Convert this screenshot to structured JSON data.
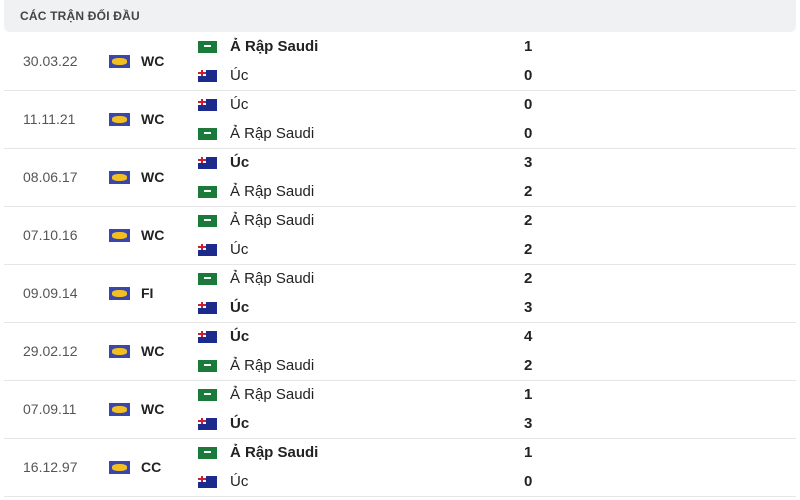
{
  "header": {
    "title": "CÁC TRẬN ĐỐI ĐẦU"
  },
  "matches": [
    {
      "date": "30.03.22",
      "comp": "WC",
      "teams": [
        {
          "name": "Ả Rập Saudi",
          "flag": "saudi-arabia",
          "score": "1",
          "winner": true
        },
        {
          "name": "Úc",
          "flag": "australia",
          "score": "0",
          "winner": false
        }
      ]
    },
    {
      "date": "11.11.21",
      "comp": "WC",
      "teams": [
        {
          "name": "Úc",
          "flag": "australia",
          "score": "0",
          "winner": false
        },
        {
          "name": "Ả Rập Saudi",
          "flag": "saudi-arabia",
          "score": "0",
          "winner": false
        }
      ]
    },
    {
      "date": "08.06.17",
      "comp": "WC",
      "teams": [
        {
          "name": "Úc",
          "flag": "australia",
          "score": "3",
          "winner": true
        },
        {
          "name": "Ả Rập Saudi",
          "flag": "saudi-arabia",
          "score": "2",
          "winner": false
        }
      ]
    },
    {
      "date": "07.10.16",
      "comp": "WC",
      "teams": [
        {
          "name": "Ả Rập Saudi",
          "flag": "saudi-arabia",
          "score": "2",
          "winner": false
        },
        {
          "name": "Úc",
          "flag": "australia",
          "score": "2",
          "winner": false
        }
      ]
    },
    {
      "date": "09.09.14",
      "comp": "FI",
      "teams": [
        {
          "name": "Ả Rập Saudi",
          "flag": "saudi-arabia",
          "score": "2",
          "winner": false
        },
        {
          "name": "Úc",
          "flag": "australia",
          "score": "3",
          "winner": true
        }
      ]
    },
    {
      "date": "29.02.12",
      "comp": "WC",
      "teams": [
        {
          "name": "Úc",
          "flag": "australia",
          "score": "4",
          "winner": true
        },
        {
          "name": "Ả Rập Saudi",
          "flag": "saudi-arabia",
          "score": "2",
          "winner": false
        }
      ]
    },
    {
      "date": "07.09.11",
      "comp": "WC",
      "teams": [
        {
          "name": "Ả Rập Saudi",
          "flag": "saudi-arabia",
          "score": "1",
          "winner": false
        },
        {
          "name": "Úc",
          "flag": "australia",
          "score": "3",
          "winner": true
        }
      ]
    },
    {
      "date": "16.12.97",
      "comp": "CC",
      "teams": [
        {
          "name": "Ả Rập Saudi",
          "flag": "saudi-arabia",
          "score": "1",
          "winner": true
        },
        {
          "name": "Úc",
          "flag": "australia",
          "score": "0",
          "winner": false
        }
      ]
    }
  ]
}
